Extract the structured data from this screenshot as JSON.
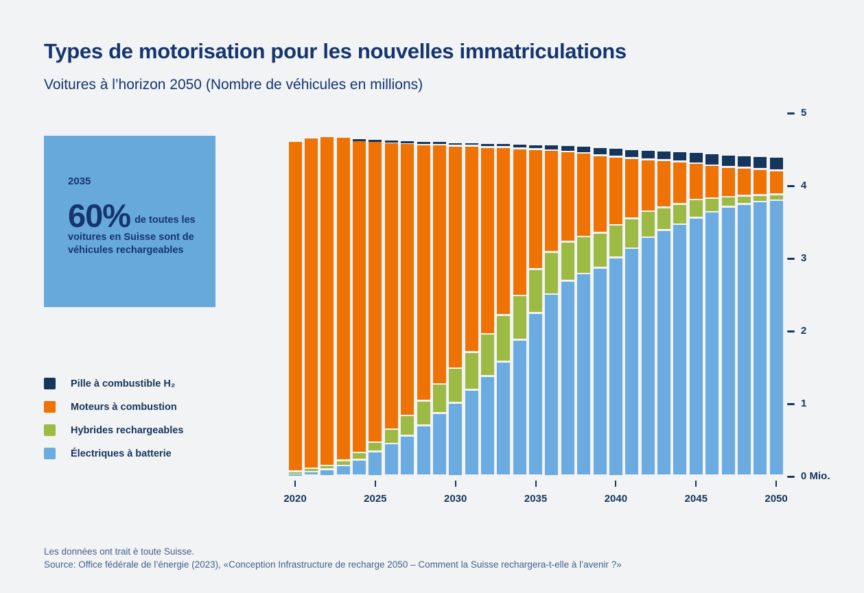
{
  "page": {
    "title": "Types de motorisation pour les nouvelles immatriculations",
    "subtitle": "Voitures à l’horizon 2050 (Nombre de véhicules en millions)",
    "footnote_line1": "Les données ont trait è toute Suisse.",
    "footnote_line2": "Source: Office fédérale de l’énergie (2023), «Conception Infrastructure de recharge 2050 – Comment la Suisse rechargera-t-elle à l’avenir ?»"
  },
  "highlight_box": {
    "year": "2035",
    "stat_value": "60%",
    "stat_text": "de toutes les voitures en Suisse sont de véhicules rechargeables",
    "background": "#68a9dc"
  },
  "legend": [
    {
      "key": "fuel_cell",
      "label": "Pille à combustible H₂",
      "color": "#16355c"
    },
    {
      "key": "combustion",
      "label": "Moteurs à combustion",
      "color": "#ee7204"
    },
    {
      "key": "hybrid",
      "label": "Hybrides rechargeables",
      "color": "#9dba44"
    },
    {
      "key": "battery",
      "label": "Électriques à batterie",
      "color": "#6babdf"
    }
  ],
  "chart_data": {
    "type": "bar",
    "stacked": true,
    "title": "Types de motorisation pour les nouvelles immatriculations",
    "subtitle": "Voitures à l’horizon 2050 (Nombre de véhicules en millions)",
    "unit": "Mio.",
    "ylim": [
      0,
      5
    ],
    "y_ticks": [
      0,
      1,
      2,
      3,
      4,
      5
    ],
    "grid": false,
    "legend_position": "left",
    "x": [
      2020,
      2021,
      2022,
      2023,
      2024,
      2025,
      2026,
      2027,
      2028,
      2029,
      2030,
      2031,
      2032,
      2033,
      2034,
      2035,
      2036,
      2037,
      2038,
      2039,
      2040,
      2041,
      2042,
      2043,
      2044,
      2045,
      2046,
      2047,
      2048,
      2049,
      2050
    ],
    "x_tick_labels": [
      "2020",
      "2025",
      "2030",
      "2035",
      "2040",
      "2045",
      "2050"
    ],
    "series": [
      {
        "key": "battery",
        "name": "Électriques à batterie",
        "color": "#6babdf",
        "values": [
          0.03,
          0.06,
          0.09,
          0.14,
          0.22,
          0.33,
          0.44,
          0.55,
          0.69,
          0.86,
          1.0,
          1.18,
          1.37,
          1.57,
          1.87,
          2.24,
          2.5,
          2.68,
          2.78,
          2.86,
          3.0,
          3.13,
          3.28,
          3.38,
          3.46,
          3.55,
          3.63,
          3.7,
          3.74,
          3.77,
          3.79
        ]
      },
      {
        "key": "hybrid",
        "name": "Hybrides rechargeables",
        "color": "#9dba44",
        "values": [
          0.03,
          0.04,
          0.05,
          0.07,
          0.1,
          0.13,
          0.2,
          0.28,
          0.34,
          0.4,
          0.48,
          0.52,
          0.58,
          0.64,
          0.61,
          0.6,
          0.58,
          0.54,
          0.51,
          0.48,
          0.45,
          0.41,
          0.36,
          0.31,
          0.28,
          0.25,
          0.19,
          0.14,
          0.11,
          0.09,
          0.08
        ]
      },
      {
        "key": "combustion",
        "name": "Moteurs à combustion",
        "color": "#ee7204",
        "values": [
          4.54,
          4.55,
          4.53,
          4.45,
          4.3,
          4.15,
          3.95,
          3.75,
          3.53,
          3.3,
          3.06,
          2.84,
          2.57,
          2.31,
          2.02,
          1.65,
          1.4,
          1.24,
          1.15,
          1.07,
          0.94,
          0.83,
          0.71,
          0.65,
          0.58,
          0.5,
          0.45,
          0.41,
          0.39,
          0.36,
          0.33
        ]
      },
      {
        "key": "fuel_cell",
        "name": "Pille à combustible H₂",
        "color": "#16355c",
        "values": [
          0,
          0,
          0,
          0,
          0.02,
          0.02,
          0.03,
          0.03,
          0.04,
          0.04,
          0.05,
          0.05,
          0.06,
          0.06,
          0.07,
          0.07,
          0.08,
          0.09,
          0.1,
          0.11,
          0.12,
          0.12,
          0.13,
          0.13,
          0.14,
          0.15,
          0.16,
          0.17,
          0.17,
          0.18,
          0.19
        ]
      }
    ]
  }
}
